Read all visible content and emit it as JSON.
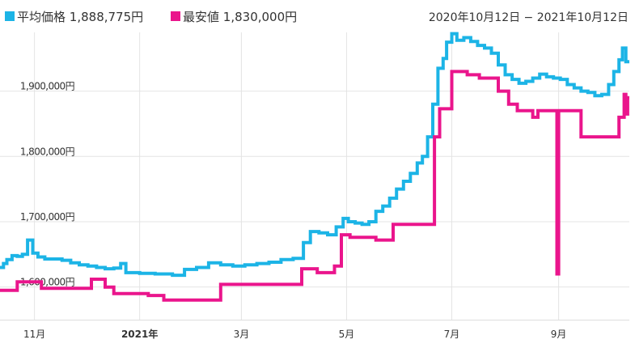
{
  "legend": {
    "avg_label": "平均価格",
    "avg_value": "1,888,775円",
    "min_label": "最安値",
    "min_value": "1,830,000円"
  },
  "date_range": "2020年10月12日 − 2021年10月12日",
  "colors": {
    "avg": "#1cb4e6",
    "min": "#ea158c",
    "grid": "#e4e4e4",
    "text": "#333333"
  },
  "chart_data": {
    "type": "line",
    "title": "",
    "xlabel": "",
    "ylabel": "",
    "x_range": [
      "2020-10-12",
      "2021-10-12"
    ],
    "ylim": [
      1550000,
      1990000
    ],
    "y_ticks": [
      {
        "value": 1600000,
        "label": "1,600,000円"
      },
      {
        "value": 1700000,
        "label": "1,700,000円"
      },
      {
        "value": 1800000,
        "label": "1,800,000円"
      },
      {
        "value": 1900000,
        "label": "1,900,000円"
      }
    ],
    "x_ticks": [
      {
        "date": "2020-11-01",
        "label": "11月",
        "bold": false
      },
      {
        "date": "2021-01-01",
        "label": "2021年",
        "bold": true
      },
      {
        "date": "2021-03-01",
        "label": "3月",
        "bold": false
      },
      {
        "date": "2021-05-01",
        "label": "5月",
        "bold": false
      },
      {
        "date": "2021-07-01",
        "label": "7月",
        "bold": false
      },
      {
        "date": "2021-09-01",
        "label": "9月",
        "bold": false
      }
    ],
    "grid": true,
    "step": true,
    "series": [
      {
        "name": "平均価格",
        "color": "#1cb4e6",
        "points": [
          [
            "2020-10-12",
            1630000
          ],
          [
            "2020-10-14",
            1636000
          ],
          [
            "2020-10-16",
            1642000
          ],
          [
            "2020-10-19",
            1648000
          ],
          [
            "2020-10-22",
            1647000
          ],
          [
            "2020-10-25",
            1650000
          ],
          [
            "2020-10-28",
            1672000
          ],
          [
            "2020-10-31",
            1652000
          ],
          [
            "2020-11-03",
            1646000
          ],
          [
            "2020-11-07",
            1643000
          ],
          [
            "2020-11-12",
            1643000
          ],
          [
            "2020-11-17",
            1641000
          ],
          [
            "2020-11-22",
            1637000
          ],
          [
            "2020-11-27",
            1634000
          ],
          [
            "2020-12-02",
            1632000
          ],
          [
            "2020-12-07",
            1630000
          ],
          [
            "2020-12-12",
            1628000
          ],
          [
            "2020-12-17",
            1629000
          ],
          [
            "2020-12-21",
            1636000
          ],
          [
            "2020-12-24",
            1622000
          ],
          [
            "2021-01-01",
            1621000
          ],
          [
            "2021-01-10",
            1620000
          ],
          [
            "2021-01-20",
            1618000
          ],
          [
            "2021-01-27",
            1627000
          ],
          [
            "2021-02-03",
            1630000
          ],
          [
            "2021-02-10",
            1637000
          ],
          [
            "2021-02-17",
            1634000
          ],
          [
            "2021-02-24",
            1632000
          ],
          [
            "2021-03-03",
            1634000
          ],
          [
            "2021-03-10",
            1636000
          ],
          [
            "2021-03-17",
            1638000
          ],
          [
            "2021-03-24",
            1642000
          ],
          [
            "2021-03-31",
            1644000
          ],
          [
            "2021-04-06",
            1668000
          ],
          [
            "2021-04-10",
            1685000
          ],
          [
            "2021-04-15",
            1683000
          ],
          [
            "2021-04-20",
            1680000
          ],
          [
            "2021-04-25",
            1692000
          ],
          [
            "2021-04-29",
            1705000
          ],
          [
            "2021-05-02",
            1700000
          ],
          [
            "2021-05-06",
            1698000
          ],
          [
            "2021-05-10",
            1696000
          ],
          [
            "2021-05-14",
            1700000
          ],
          [
            "2021-05-18",
            1716000
          ],
          [
            "2021-05-22",
            1724000
          ],
          [
            "2021-05-26",
            1736000
          ],
          [
            "2021-05-30",
            1750000
          ],
          [
            "2021-06-03",
            1762000
          ],
          [
            "2021-06-07",
            1774000
          ],
          [
            "2021-06-11",
            1790000
          ],
          [
            "2021-06-14",
            1800000
          ],
          [
            "2021-06-17",
            1830000
          ],
          [
            "2021-06-20",
            1880000
          ],
          [
            "2021-06-23",
            1935000
          ],
          [
            "2021-06-26",
            1950000
          ],
          [
            "2021-06-28",
            1975000
          ],
          [
            "2021-07-01",
            1988000
          ],
          [
            "2021-07-04",
            1978000
          ],
          [
            "2021-07-08",
            1982000
          ],
          [
            "2021-07-12",
            1976000
          ],
          [
            "2021-07-16",
            1970000
          ],
          [
            "2021-07-20",
            1966000
          ],
          [
            "2021-07-24",
            1958000
          ],
          [
            "2021-07-28",
            1940000
          ],
          [
            "2021-08-01",
            1925000
          ],
          [
            "2021-08-05",
            1918000
          ],
          [
            "2021-08-09",
            1912000
          ],
          [
            "2021-08-13",
            1915000
          ],
          [
            "2021-08-17",
            1920000
          ],
          [
            "2021-08-21",
            1926000
          ],
          [
            "2021-08-25",
            1922000
          ],
          [
            "2021-08-29",
            1920000
          ],
          [
            "2021-09-02",
            1918000
          ],
          [
            "2021-09-06",
            1910000
          ],
          [
            "2021-09-10",
            1905000
          ],
          [
            "2021-09-14",
            1900000
          ],
          [
            "2021-09-18",
            1898000
          ],
          [
            "2021-09-22",
            1893000
          ],
          [
            "2021-09-26",
            1895000
          ],
          [
            "2021-09-30",
            1910000
          ],
          [
            "2021-10-03",
            1930000
          ],
          [
            "2021-10-06",
            1948000
          ],
          [
            "2021-10-08",
            1966000
          ],
          [
            "2021-10-10",
            1945000
          ],
          [
            "2021-10-12",
            1945000
          ]
        ]
      },
      {
        "name": "最安値",
        "color": "#ea158c",
        "points": [
          [
            "2020-10-12",
            1595000
          ],
          [
            "2020-10-22",
            1608000
          ],
          [
            "2020-11-05",
            1598000
          ],
          [
            "2020-12-04",
            1612000
          ],
          [
            "2020-12-12",
            1600000
          ],
          [
            "2020-12-17",
            1590000
          ],
          [
            "2021-01-06",
            1587000
          ],
          [
            "2021-01-15",
            1580000
          ],
          [
            "2021-02-17",
            1604000
          ],
          [
            "2021-04-05",
            1628000
          ],
          [
            "2021-04-14",
            1622000
          ],
          [
            "2021-04-24",
            1632000
          ],
          [
            "2021-04-28",
            1680000
          ],
          [
            "2021-05-03",
            1676000
          ],
          [
            "2021-05-18",
            1672000
          ],
          [
            "2021-05-28",
            1696000
          ],
          [
            "2021-06-21",
            1830000
          ],
          [
            "2021-06-24",
            1873000
          ],
          [
            "2021-07-01",
            1930000
          ],
          [
            "2021-07-10",
            1925000
          ],
          [
            "2021-07-17",
            1920000
          ],
          [
            "2021-07-28",
            1900000
          ],
          [
            "2021-08-03",
            1880000
          ],
          [
            "2021-08-08",
            1870000
          ],
          [
            "2021-08-17",
            1860000
          ],
          [
            "2021-08-20",
            1870000
          ],
          [
            "2021-08-31",
            1620000
          ],
          [
            "2021-09-01",
            1870000
          ],
          [
            "2021-09-14",
            1830000
          ],
          [
            "2021-10-06",
            1860000
          ],
          [
            "2021-10-09",
            1895000
          ],
          [
            "2021-10-10",
            1865000
          ],
          [
            "2021-10-11",
            1890000
          ],
          [
            "2021-10-12",
            1890000
          ]
        ]
      }
    ]
  }
}
